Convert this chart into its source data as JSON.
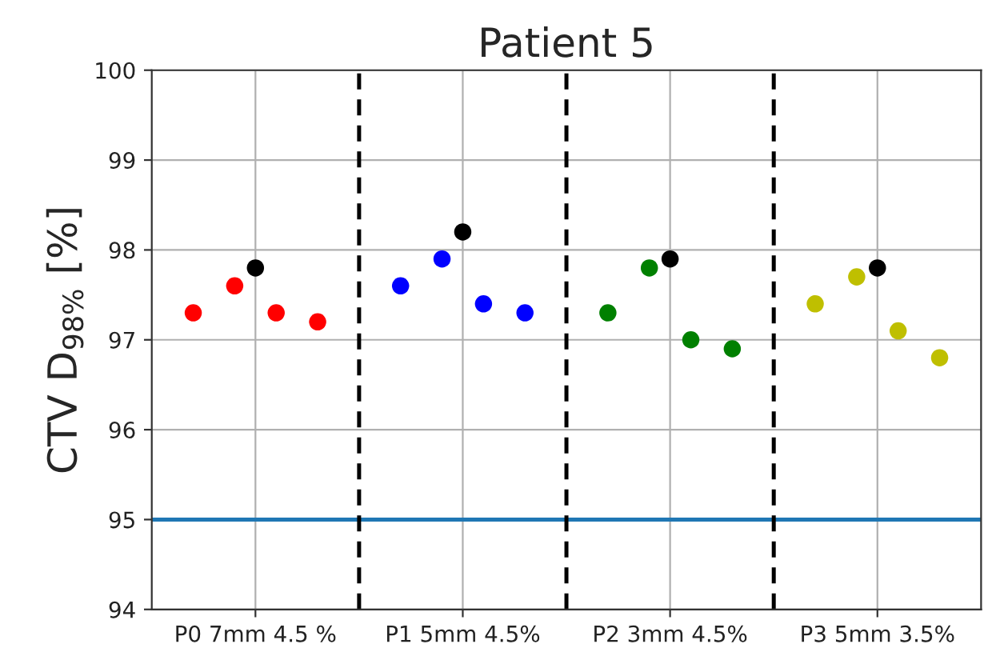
{
  "chart_data": {
    "type": "scatter",
    "title": "Patient 5",
    "ylabel": "CTV D$_{98%}$ [%]",
    "categories": [
      null,
      null,
      null,
      null,
      null,
      "P0 7mm 4.5 %",
      null,
      null,
      null,
      null,
      null,
      null,
      null,
      null,
      null,
      "P1 5mm 4.5%",
      null,
      null,
      null,
      null,
      null,
      null,
      null,
      null,
      null,
      "P2 3mm 4.5%",
      null,
      null,
      null,
      null,
      null,
      null,
      null,
      null,
      null,
      "P3 5mm 3.5%",
      null,
      null,
      null,
      null,
      null
    ],
    "ylim": [
      94,
      100
    ],
    "yticks": [
      94,
      95,
      96,
      97,
      98,
      99,
      100
    ],
    "series": [
      {
        "color": "#ff0000",
        "values": [
          null,
          null,
          97.3,
          null,
          97.6,
          null,
          97.3,
          null,
          97.2,
          null,
          null,
          null,
          null,
          null,
          null,
          null,
          null,
          null,
          null,
          null,
          null,
          null,
          null,
          null,
          null,
          null,
          null,
          null,
          null,
          null,
          null,
          null,
          null,
          null,
          null,
          null,
          null,
          null,
          null,
          null,
          null
        ]
      },
      {
        "color": "#0000ff",
        "values": [
          null,
          null,
          null,
          null,
          null,
          null,
          null,
          null,
          null,
          null,
          null,
          null,
          97.6,
          null,
          97.9,
          null,
          97.4,
          null,
          97.3,
          null,
          null,
          null,
          null,
          null,
          null,
          null,
          null,
          null,
          null,
          null,
          null,
          null,
          null,
          null,
          null,
          null,
          null,
          null,
          null,
          null,
          null
        ]
      },
      {
        "color": "#008000",
        "values": [
          null,
          null,
          null,
          null,
          null,
          null,
          null,
          null,
          null,
          null,
          null,
          null,
          null,
          null,
          null,
          null,
          null,
          null,
          null,
          null,
          null,
          null,
          97.3,
          null,
          97.8,
          null,
          97.0,
          null,
          96.9,
          null,
          null,
          null,
          null,
          null,
          null,
          null,
          null,
          null,
          null,
          null,
          null
        ]
      },
      {
        "color": "#bfbf00",
        "values": [
          null,
          null,
          null,
          null,
          null,
          null,
          null,
          null,
          null,
          null,
          null,
          null,
          null,
          null,
          null,
          null,
          null,
          null,
          null,
          null,
          null,
          null,
          null,
          null,
          null,
          null,
          null,
          null,
          null,
          null,
          null,
          null,
          97.4,
          null,
          97.7,
          null,
          97.1,
          null,
          96.8,
          null,
          null
        ]
      },
      {
        "color": "#000000",
        "values": [
          null,
          null,
          null,
          null,
          null,
          97.8,
          null,
          null,
          null,
          null,
          null,
          null,
          null,
          null,
          null,
          98.2,
          null,
          null,
          null,
          null,
          null,
          null,
          null,
          null,
          null,
          97.9,
          null,
          null,
          null,
          null,
          null,
          null,
          null,
          null,
          null,
          97.8,
          null,
          null,
          null,
          null,
          null
        ]
      }
    ],
    "ref_lines": [
      {
        "axis": "y",
        "value": 95,
        "color": "#1f77b4",
        "line_style": "solid"
      }
    ],
    "grid": true,
    "marker": "circle"
  }
}
